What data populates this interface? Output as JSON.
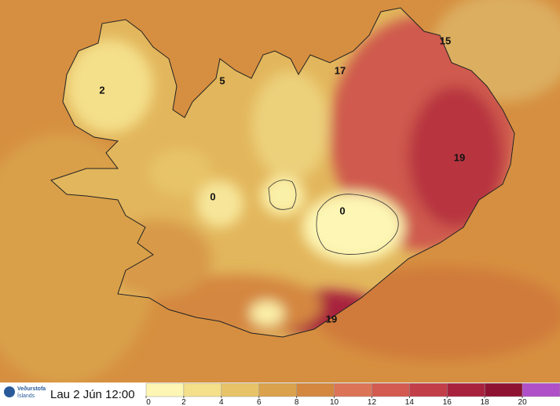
{
  "timestamp": "Lau 2 Jún 12:00",
  "logo": {
    "line1": "Veðurstofa",
    "line2": "Íslands"
  },
  "map": {
    "labels": [
      "2",
      "5",
      "17",
      "15",
      "19",
      "0",
      "0",
      "19"
    ]
  },
  "legend": {
    "ticks": [
      0,
      2,
      4,
      6,
      8,
      10,
      12,
      14,
      16,
      18,
      20
    ],
    "colors": [
      "#fdf6b4",
      "#f4df8a",
      "#e8c468",
      "#daa24c",
      "#d4873f",
      "#dc7458",
      "#d25a50",
      "#c23e48",
      "#a8213d",
      "#8e1232",
      "#b050c8"
    ]
  }
}
